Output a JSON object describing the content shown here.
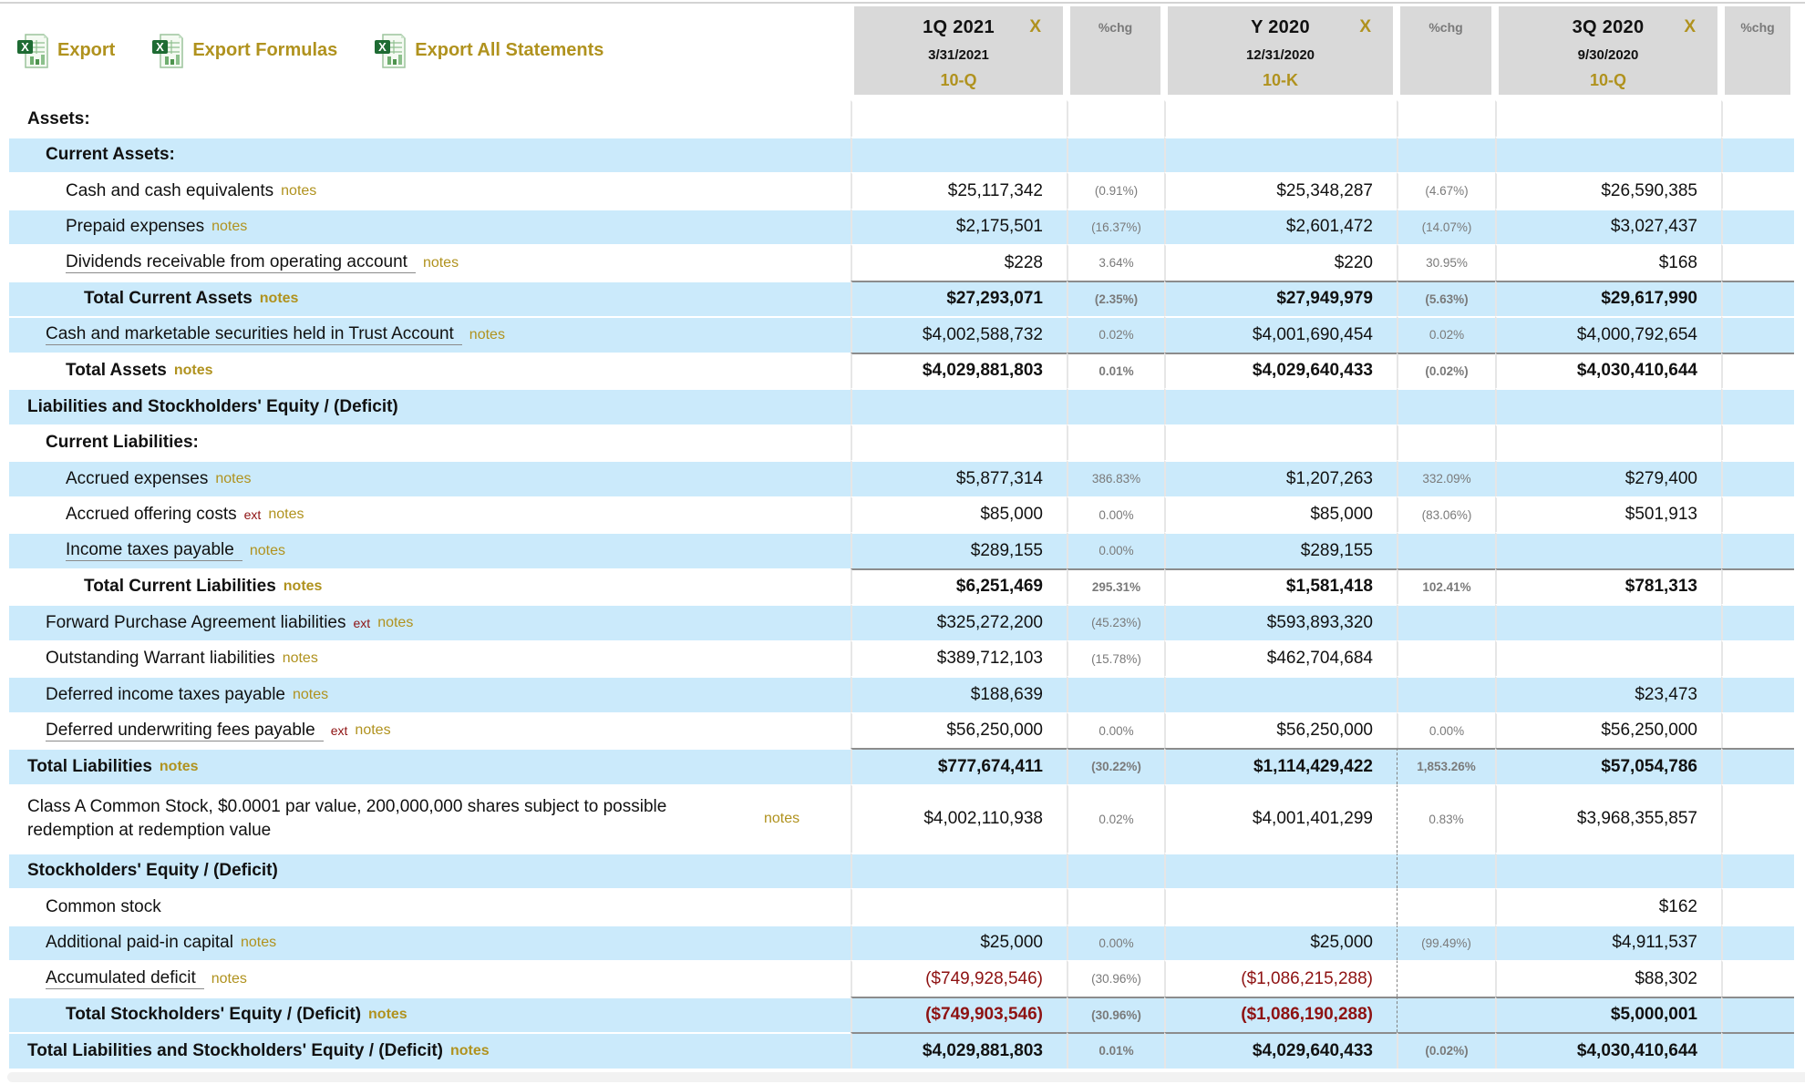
{
  "colors": {
    "accent_gold": "#B0921E",
    "row_blue": "#CBEAFB",
    "negative_red": "#8E1212",
    "chg_gray": "#7A7A7A",
    "header_bg": "#D9D9D9"
  },
  "labels": {
    "notes": "notes",
    "ext": "ext"
  },
  "toolbar": {
    "items": [
      {
        "label": "Export"
      },
      {
        "label": "Export Formulas"
      },
      {
        "label": "Export All Statements"
      }
    ]
  },
  "header": {
    "chg_label": "%chg",
    "columns": [
      {
        "period": "1Q 2021",
        "close": "X",
        "date": "3/31/2021",
        "form": "10-Q"
      },
      {
        "period": "Y 2020",
        "close": "X",
        "date": "12/31/2020",
        "form": "10-K"
      },
      {
        "period": "3Q 2020",
        "close": "X",
        "date": "9/30/2020",
        "form": "10-Q"
      }
    ]
  },
  "rows": [
    {
      "label": "Assets:",
      "bg": "white",
      "indent": 1,
      "bold": true,
      "values": [
        "",
        "",
        "",
        "",
        "",
        ""
      ]
    },
    {
      "label": "Current Assets:",
      "bg": "blue",
      "indent": 2,
      "bold": true,
      "values": [
        "",
        "",
        "",
        "",
        "",
        ""
      ]
    },
    {
      "label": "Cash and cash equivalents",
      "bg": "white",
      "indent": 3,
      "notes": true,
      "values": [
        "$25,117,342",
        "(0.91%)",
        "$25,348,287",
        "(4.67%)",
        "$26,590,385",
        ""
      ]
    },
    {
      "label": "Prepaid expenses",
      "bg": "blue",
      "indent": 3,
      "notes": true,
      "values": [
        "$2,175,501",
        "(16.37%)",
        "$2,601,472",
        "(14.07%)",
        "$3,027,437",
        ""
      ]
    },
    {
      "label": "Dividends receivable from operating account",
      "bg": "white",
      "indent": 3,
      "notes": true,
      "underline": true,
      "values": [
        "$228",
        "3.64%",
        "$220",
        "30.95%",
        "$168",
        ""
      ]
    },
    {
      "label": "Total Current Assets",
      "bg": "blue",
      "indent": 4,
      "bold": true,
      "notes": true,
      "total": true,
      "values": [
        "$27,293,071",
        "(2.35%)",
        "$27,949,979",
        "(5.63%)",
        "$29,617,990",
        ""
      ]
    },
    {
      "label": "Cash and marketable securities held in Trust Account",
      "bg": "blue",
      "indent": 2,
      "notes": true,
      "underline": true,
      "values": [
        "$4,002,588,732",
        "0.02%",
        "$4,001,690,454",
        "0.02%",
        "$4,000,792,654",
        ""
      ]
    },
    {
      "label": "Total Assets",
      "bg": "white",
      "indent": 3,
      "bold": true,
      "notes": true,
      "total": true,
      "values": [
        "$4,029,881,803",
        "0.01%",
        "$4,029,640,433",
        "(0.02%)",
        "$4,030,410,644",
        ""
      ]
    },
    {
      "label": "Liabilities and Stockholders' Equity / (Deficit)",
      "bg": "blue",
      "indent": 1,
      "bold": true,
      "values": [
        "",
        "",
        "",
        "",
        "",
        ""
      ]
    },
    {
      "label": "Current Liabilities:",
      "bg": "white",
      "indent": 2,
      "bold": true,
      "values": [
        "",
        "",
        "",
        "",
        "",
        ""
      ]
    },
    {
      "label": "Accrued expenses",
      "bg": "blue",
      "indent": 3,
      "notes": true,
      "values": [
        "$5,877,314",
        "386.83%",
        "$1,207,263",
        "332.09%",
        "$279,400",
        ""
      ]
    },
    {
      "label": "Accrued offering costs",
      "bg": "white",
      "indent": 3,
      "ext": true,
      "notes": true,
      "values": [
        "$85,000",
        "0.00%",
        "$85,000",
        "(83.06%)",
        "$501,913",
        ""
      ]
    },
    {
      "label": "Income taxes payable",
      "bg": "blue",
      "indent": 3,
      "notes": true,
      "underline": true,
      "values": [
        "$289,155",
        "0.00%",
        "$289,155",
        "",
        "",
        ""
      ]
    },
    {
      "label": "Total Current Liabilities",
      "bg": "white",
      "indent": 4,
      "bold": true,
      "notes": true,
      "total": true,
      "values": [
        "$6,251,469",
        "295.31%",
        "$1,581,418",
        "102.41%",
        "$781,313",
        ""
      ]
    },
    {
      "label": "Forward Purchase Agreement liabilities",
      "bg": "blue",
      "indent": 2,
      "ext": true,
      "notes": true,
      "values": [
        "$325,272,200",
        "(45.23%)",
        "$593,893,320",
        "",
        "",
        ""
      ]
    },
    {
      "label": "Outstanding Warrant liabilities",
      "bg": "white",
      "indent": 2,
      "notes": true,
      "values": [
        "$389,712,103",
        "(15.78%)",
        "$462,704,684",
        "",
        "",
        ""
      ]
    },
    {
      "label": "Deferred income taxes payable",
      "bg": "blue",
      "indent": 2,
      "notes": true,
      "values": [
        "$188,639",
        "",
        "",
        "",
        "$23,473",
        ""
      ]
    },
    {
      "label": "Deferred underwriting fees payable",
      "bg": "white",
      "indent": 2,
      "ext": true,
      "notes": true,
      "underline": true,
      "values": [
        "$56,250,000",
        "0.00%",
        "$56,250,000",
        "0.00%",
        "$56,250,000",
        ""
      ]
    },
    {
      "label": "Total Liabilities",
      "bg": "blue",
      "indent": 1,
      "bold": true,
      "notes": true,
      "total": true,
      "dashed": true,
      "values": [
        "$777,674,411",
        "(30.22%)",
        "$1,114,429,422",
        "1,853.26%",
        "$57,054,786",
        ""
      ]
    },
    {
      "label": "Class A Common Stock, $0.0001 par value, 200,000,000 shares subject to possible redemption at redemption value",
      "bg": "white",
      "indent": 1,
      "notes": true,
      "dashed": true,
      "multiline": true,
      "values": [
        "$4,002,110,938",
        "0.02%",
        "$4,001,401,299",
        "0.83%",
        "$3,968,355,857",
        ""
      ]
    },
    {
      "label": "Stockholders' Equity / (Deficit)",
      "bg": "blue",
      "indent": 1,
      "bold": true,
      "dashed": true,
      "values": [
        "",
        "",
        "",
        "",
        "",
        ""
      ]
    },
    {
      "label": "Common stock",
      "bg": "white",
      "indent": 2,
      "dashed": true,
      "values": [
        "",
        "",
        "",
        "",
        "$162",
        ""
      ]
    },
    {
      "label": "Additional paid-in capital",
      "bg": "blue",
      "indent": 2,
      "notes": true,
      "dashed": true,
      "values": [
        "$25,000",
        "0.00%",
        "$25,000",
        "(99.49%)",
        "$4,911,537",
        ""
      ]
    },
    {
      "label": "Accumulated deficit",
      "bg": "white",
      "indent": 2,
      "notes": true,
      "underline": true,
      "dashed": true,
      "values": [
        "($749,928,546)",
        "(30.96%)",
        "($1,086,215,288)",
        "",
        "$88,302",
        ""
      ]
    },
    {
      "label": "Total Stockholders' Equity / (Deficit)",
      "bg": "blue",
      "indent": 3,
      "bold": true,
      "notes": true,
      "total": true,
      "dashed": true,
      "values": [
        "($749,903,546)",
        "(30.96%)",
        "($1,086,190,288)",
        "",
        "$5,000,001",
        ""
      ]
    },
    {
      "label": "Total Liabilities and Stockholders' Equity / (Deficit)",
      "bg": "blue",
      "indent": 1,
      "bold": true,
      "notes": true,
      "total": true,
      "values": [
        "$4,029,881,803",
        "0.01%",
        "$4,029,640,433",
        "(0.02%)",
        "$4,030,410,644",
        ""
      ]
    }
  ]
}
